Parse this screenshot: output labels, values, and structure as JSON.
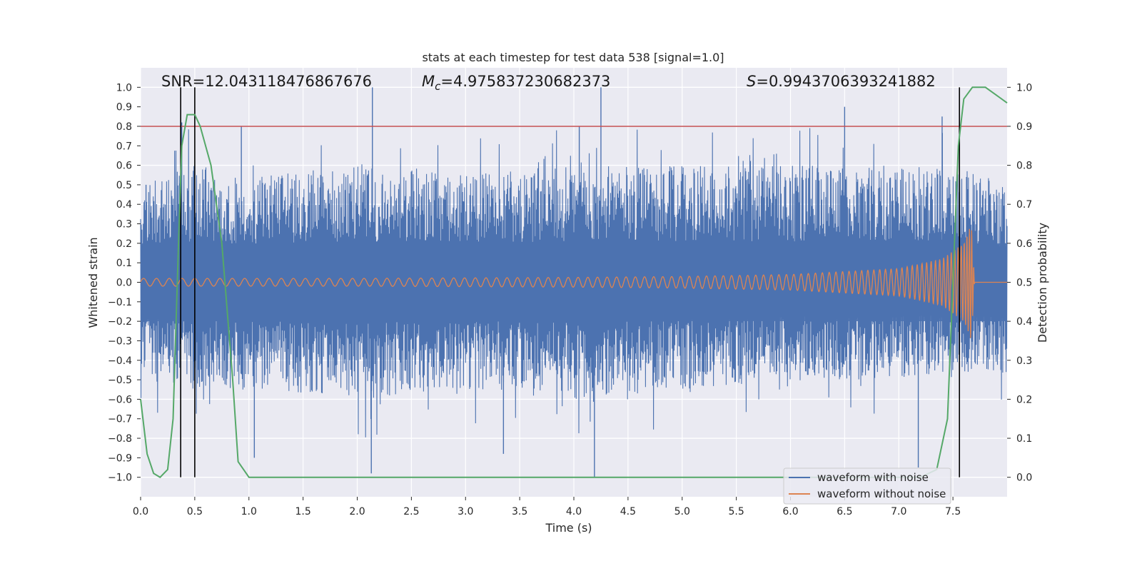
{
  "chart_data": {
    "type": "line",
    "title": "stats at each timestep for test data 538 [signal=1.0]",
    "xlabel": "Time (s)",
    "ylabel_left": "Whitened strain",
    "ylabel_right": "Detection probability",
    "xlim": [
      0.0,
      8.0
    ],
    "ylim_left": [
      -1.1,
      1.1
    ],
    "ylim_right": [
      -0.05,
      1.05
    ],
    "x_ticks": [
      "0.0",
      "0.5",
      "1.0",
      "1.5",
      "2.0",
      "2.5",
      "3.0",
      "3.5",
      "4.0",
      "4.5",
      "5.0",
      "5.5",
      "6.0",
      "6.5",
      "7.0",
      "7.5"
    ],
    "y_ticks_left": [
      "1.0",
      "0.9",
      "0.8",
      "0.7",
      "0.6",
      "0.5",
      "0.4",
      "0.3",
      "0.2",
      "0.1",
      "0.0",
      "−0.1",
      "−0.2",
      "−0.3",
      "−0.4",
      "−0.5",
      "−0.6",
      "−0.7",
      "−0.8",
      "−0.9",
      "−1.0"
    ],
    "y_ticks_right": [
      "1.0",
      "0.9",
      "0.8",
      "0.7",
      "0.6",
      "0.5",
      "0.4",
      "0.3",
      "0.2",
      "0.1",
      "0.0"
    ],
    "annotations": {
      "snr": "SNR=12.043118476867676",
      "mc": "=4.975837230682373",
      "mc_symbol": "M",
      "mc_sub": "c",
      "s": "=0.9943706393241882",
      "s_symbol": "S"
    },
    "threshold": {
      "y_right": 0.9,
      "color": "#c44e52"
    },
    "vlines_x": [
      0.37,
      0.5,
      7.56
    ],
    "series": [
      {
        "name": "waveform with noise",
        "color": "#4c72b0",
        "envelope_upper": [
          [
            0,
            0.5
          ],
          [
            0.5,
            0.6
          ],
          [
            1,
            0.55
          ],
          [
            2,
            0.6
          ],
          [
            3,
            0.55
          ],
          [
            4,
            0.6
          ],
          [
            5,
            0.6
          ],
          [
            6,
            0.6
          ],
          [
            7,
            0.6
          ],
          [
            7.5,
            0.6
          ],
          [
            8,
            0.5
          ]
        ],
        "envelope_lower": [
          [
            0,
            -0.5
          ],
          [
            0.5,
            -0.55
          ],
          [
            1,
            -0.55
          ],
          [
            2,
            -0.6
          ],
          [
            3,
            -0.55
          ],
          [
            4,
            -0.6
          ],
          [
            5,
            -0.55
          ],
          [
            6,
            -0.5
          ],
          [
            7,
            -0.5
          ],
          [
            7.5,
            -0.45
          ],
          [
            8,
            -0.5
          ]
        ],
        "notable_peaks": [
          [
            0.05,
            0.5
          ],
          [
            0.38,
            0.82
          ],
          [
            0.93,
            0.8
          ],
          [
            2.14,
            1.0
          ],
          [
            4.05,
            0.8
          ],
          [
            4.25,
            1.0
          ],
          [
            6.5,
            0.9
          ],
          [
            7.4,
            0.85
          ],
          [
            2.13,
            -0.98
          ],
          [
            4.19,
            -1.0
          ],
          [
            7.18,
            -0.95
          ],
          [
            1.05,
            -0.9
          ],
          [
            3.35,
            -0.88
          ]
        ]
      },
      {
        "name": "waveform without noise",
        "color": "#dd8452",
        "amplitude_envelope": [
          [
            0,
            0.02
          ],
          [
            2,
            0.02
          ],
          [
            4,
            0.025
          ],
          [
            5,
            0.03
          ],
          [
            6,
            0.04
          ],
          [
            7,
            0.07
          ],
          [
            7.4,
            0.12
          ],
          [
            7.6,
            0.2
          ],
          [
            7.67,
            0.3
          ],
          [
            7.7,
            0.0
          ],
          [
            8,
            0.0
          ]
        ]
      },
      {
        "name": "detection probability",
        "color": "#55a868",
        "axis": "right",
        "points": [
          [
            0,
            0.2
          ],
          [
            0.06,
            0.06
          ],
          [
            0.12,
            0.01
          ],
          [
            0.18,
            0.0
          ],
          [
            0.25,
            0.02
          ],
          [
            0.3,
            0.15
          ],
          [
            0.35,
            0.6
          ],
          [
            0.38,
            0.85
          ],
          [
            0.43,
            0.93
          ],
          [
            0.5,
            0.93
          ],
          [
            0.55,
            0.9
          ],
          [
            0.65,
            0.8
          ],
          [
            0.75,
            0.6
          ],
          [
            0.85,
            0.25
          ],
          [
            0.9,
            0.04
          ],
          [
            1.0,
            0.0
          ],
          [
            7.2,
            0.0
          ],
          [
            7.35,
            0.02
          ],
          [
            7.45,
            0.15
          ],
          [
            7.5,
            0.5
          ],
          [
            7.55,
            0.85
          ],
          [
            7.6,
            0.97
          ],
          [
            7.68,
            1.0
          ],
          [
            7.8,
            1.0
          ],
          [
            7.9,
            0.98
          ],
          [
            8.0,
            0.96
          ]
        ]
      }
    ],
    "legend": {
      "placement": "lower-right",
      "entries": [
        {
          "label": "waveform with noise",
          "color": "#4c72b0"
        },
        {
          "label": "waveform without noise",
          "color": "#dd8452"
        }
      ]
    }
  }
}
